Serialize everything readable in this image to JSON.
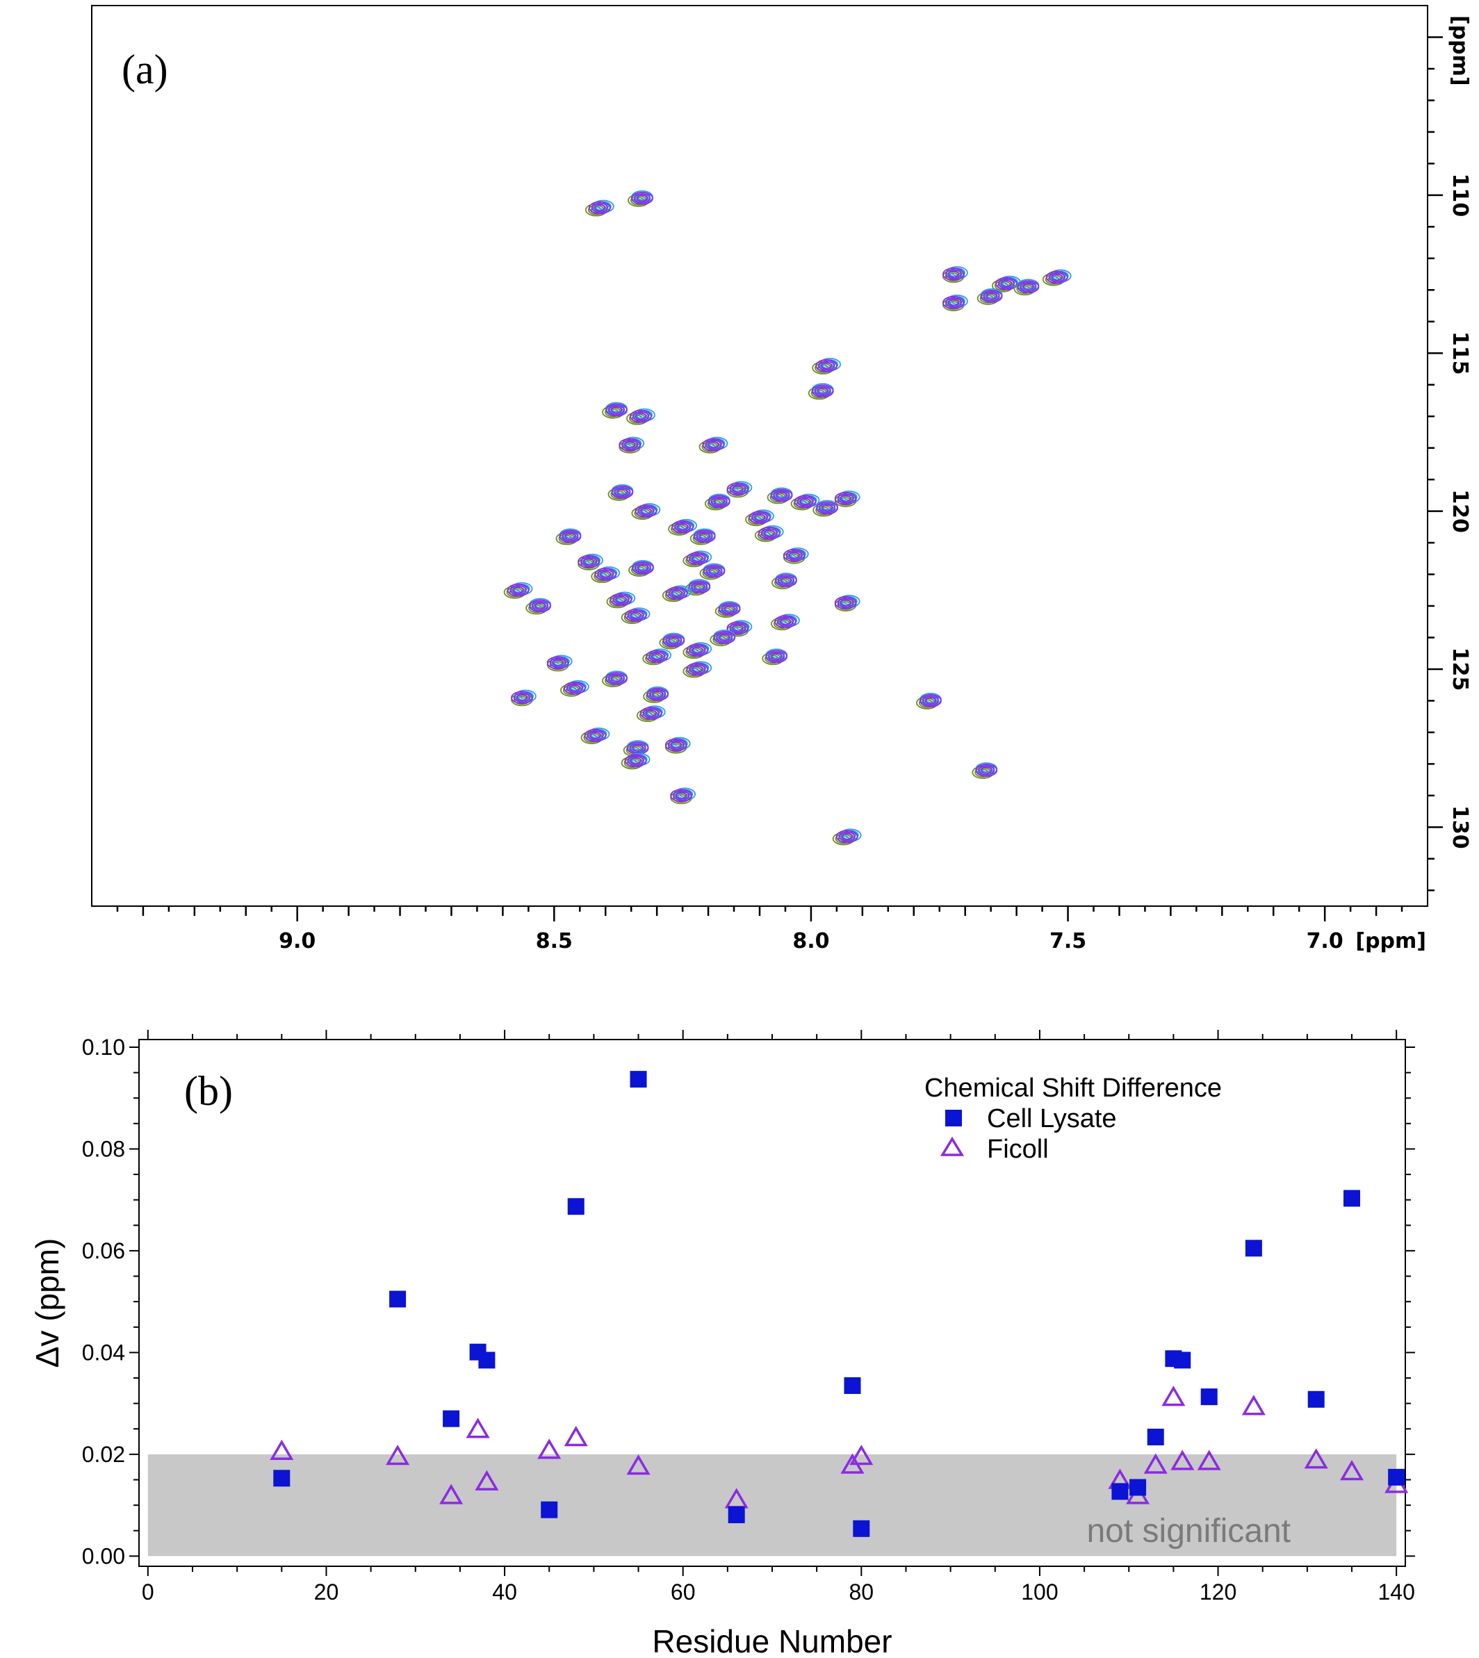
{
  "chart_data": [
    {
      "type": "contour",
      "panel_label": "(a)",
      "xlabel": "[ppm]",
      "ylabel": "[ppm]",
      "xlim": [
        9.4,
        6.8
      ],
      "ylim": [
        104,
        132.5
      ],
      "x_ticks": [
        "9.0",
        "8.5",
        "8.0",
        "7.5",
        "7.0"
      ],
      "x_tick_values": [
        9.0,
        8.5,
        8.0,
        7.5,
        7.0
      ],
      "y_ticks": [
        "110",
        "115",
        "120",
        "125",
        "130"
      ],
      "y_tick_values": [
        110,
        115,
        120,
        125,
        130
      ],
      "colors": {
        "green": "#6b8e23",
        "blue": "#2e9cf0",
        "purple": "#8a2be2"
      },
      "peaks": [
        {
          "x": 8.41,
          "y": 110.4
        },
        {
          "x": 8.33,
          "y": 110.1
        },
        {
          "x": 7.72,
          "y": 112.5
        },
        {
          "x": 7.62,
          "y": 112.8
        },
        {
          "x": 7.58,
          "y": 112.9
        },
        {
          "x": 7.52,
          "y": 112.6
        },
        {
          "x": 7.65,
          "y": 113.2
        },
        {
          "x": 7.72,
          "y": 113.4
        },
        {
          "x": 7.97,
          "y": 115.4
        },
        {
          "x": 7.98,
          "y": 116.2
        },
        {
          "x": 8.33,
          "y": 117.0
        },
        {
          "x": 8.38,
          "y": 116.8
        },
        {
          "x": 8.35,
          "y": 117.9
        },
        {
          "x": 8.19,
          "y": 117.9
        },
        {
          "x": 8.37,
          "y": 119.4
        },
        {
          "x": 8.32,
          "y": 120.0
        },
        {
          "x": 8.18,
          "y": 119.7
        },
        {
          "x": 8.14,
          "y": 119.3
        },
        {
          "x": 8.1,
          "y": 120.2
        },
        {
          "x": 8.06,
          "y": 119.5
        },
        {
          "x": 8.01,
          "y": 119.7
        },
        {
          "x": 7.97,
          "y": 119.9
        },
        {
          "x": 7.93,
          "y": 119.6
        },
        {
          "x": 8.25,
          "y": 120.5
        },
        {
          "x": 8.21,
          "y": 120.8
        },
        {
          "x": 8.08,
          "y": 120.7
        },
        {
          "x": 8.47,
          "y": 120.8
        },
        {
          "x": 8.43,
          "y": 121.6
        },
        {
          "x": 8.4,
          "y": 122.0
        },
        {
          "x": 8.33,
          "y": 121.8
        },
        {
          "x": 8.22,
          "y": 121.5
        },
        {
          "x": 8.19,
          "y": 121.9
        },
        {
          "x": 8.03,
          "y": 121.4
        },
        {
          "x": 8.57,
          "y": 122.5
        },
        {
          "x": 8.22,
          "y": 122.4
        },
        {
          "x": 8.26,
          "y": 122.6
        },
        {
          "x": 8.05,
          "y": 122.2
        },
        {
          "x": 7.93,
          "y": 122.9
        },
        {
          "x": 8.37,
          "y": 122.8
        },
        {
          "x": 8.53,
          "y": 123.0
        },
        {
          "x": 8.34,
          "y": 123.3
        },
        {
          "x": 8.16,
          "y": 123.1
        },
        {
          "x": 8.14,
          "y": 123.7
        },
        {
          "x": 8.05,
          "y": 123.5
        },
        {
          "x": 8.27,
          "y": 124.1
        },
        {
          "x": 8.22,
          "y": 124.4
        },
        {
          "x": 8.17,
          "y": 124.0
        },
        {
          "x": 8.49,
          "y": 124.8
        },
        {
          "x": 8.3,
          "y": 124.6
        },
        {
          "x": 8.07,
          "y": 124.6
        },
        {
          "x": 8.22,
          "y": 125.0
        },
        {
          "x": 8.38,
          "y": 125.3
        },
        {
          "x": 8.56,
          "y": 125.9
        },
        {
          "x": 8.46,
          "y": 125.6
        },
        {
          "x": 7.77,
          "y": 126.0
        },
        {
          "x": 8.31,
          "y": 126.4
        },
        {
          "x": 8.3,
          "y": 125.8
        },
        {
          "x": 8.26,
          "y": 127.4
        },
        {
          "x": 8.42,
          "y": 127.1
        },
        {
          "x": 8.34,
          "y": 127.5
        },
        {
          "x": 8.34,
          "y": 127.9
        },
        {
          "x": 7.66,
          "y": 128.2
        },
        {
          "x": 8.25,
          "y": 129.0
        },
        {
          "x": 7.93,
          "y": 130.3
        }
      ]
    },
    {
      "type": "scatter",
      "panel_label": "(b)",
      "xlabel": "Residue Number",
      "ylabel": "Δv (ppm)",
      "xlim": [
        -1,
        141
      ],
      "ylim": [
        -0.002,
        0.1015
      ],
      "x_ticks": [
        "0",
        "20",
        "40",
        "60",
        "80",
        "100",
        "120",
        "140"
      ],
      "x_tick_values": [
        0,
        20,
        40,
        60,
        80,
        100,
        120,
        140
      ],
      "y_ticks": [
        "0.00",
        "0.02",
        "0.04",
        "0.06",
        "0.08",
        "0.10"
      ],
      "y_tick_values": [
        0,
        0.02,
        0.04,
        0.06,
        0.08,
        0.1
      ],
      "legend_title": "Chemical Shift Difference",
      "legend_position": "top-right",
      "threshold_band": {
        "from": 0,
        "to": 0.02,
        "label": "not significant",
        "color": "#c8c8c8"
      },
      "series": [
        {
          "name": "Cell Lysate",
          "marker": "filled-square",
          "color": "#0a14d2",
          "points": [
            [
              15,
              0.0153
            ],
            [
              28,
              0.0505
            ],
            [
              34,
              0.027
            ],
            [
              37,
              0.0401
            ],
            [
              38,
              0.0385
            ],
            [
              45,
              0.0091
            ],
            [
              48,
              0.0687
            ],
            [
              55,
              0.0937
            ],
            [
              66,
              0.0081
            ],
            [
              79,
              0.0335
            ],
            [
              80,
              0.0054
            ],
            [
              109,
              0.0127
            ],
            [
              111,
              0.0135
            ],
            [
              113,
              0.0234
            ],
            [
              115,
              0.0388
            ],
            [
              116,
              0.0385
            ],
            [
              119,
              0.0313
            ],
            [
              124,
              0.0605
            ],
            [
              131,
              0.0308
            ],
            [
              135,
              0.0703
            ],
            [
              140,
              0.0155
            ]
          ]
        },
        {
          "name": "Ficoll",
          "marker": "open-triangle",
          "color": "#8a2be2",
          "points": [
            [
              15,
              0.0205
            ],
            [
              28,
              0.0195
            ],
            [
              34,
              0.0118
            ],
            [
              37,
              0.0248
            ],
            [
              38,
              0.0145
            ],
            [
              45,
              0.0207
            ],
            [
              48,
              0.0232
            ],
            [
              55,
              0.0176
            ],
            [
              66,
              0.011
            ],
            [
              79,
              0.0178
            ],
            [
              80,
              0.0195
            ],
            [
              109,
              0.0148
            ],
            [
              111,
              0.0118
            ],
            [
              113,
              0.0178
            ],
            [
              115,
              0.0311
            ],
            [
              116,
              0.0185
            ],
            [
              119,
              0.0185
            ],
            [
              124,
              0.0293
            ],
            [
              131,
              0.0188
            ],
            [
              135,
              0.0165
            ],
            [
              140,
              0.014
            ]
          ]
        }
      ]
    }
  ]
}
